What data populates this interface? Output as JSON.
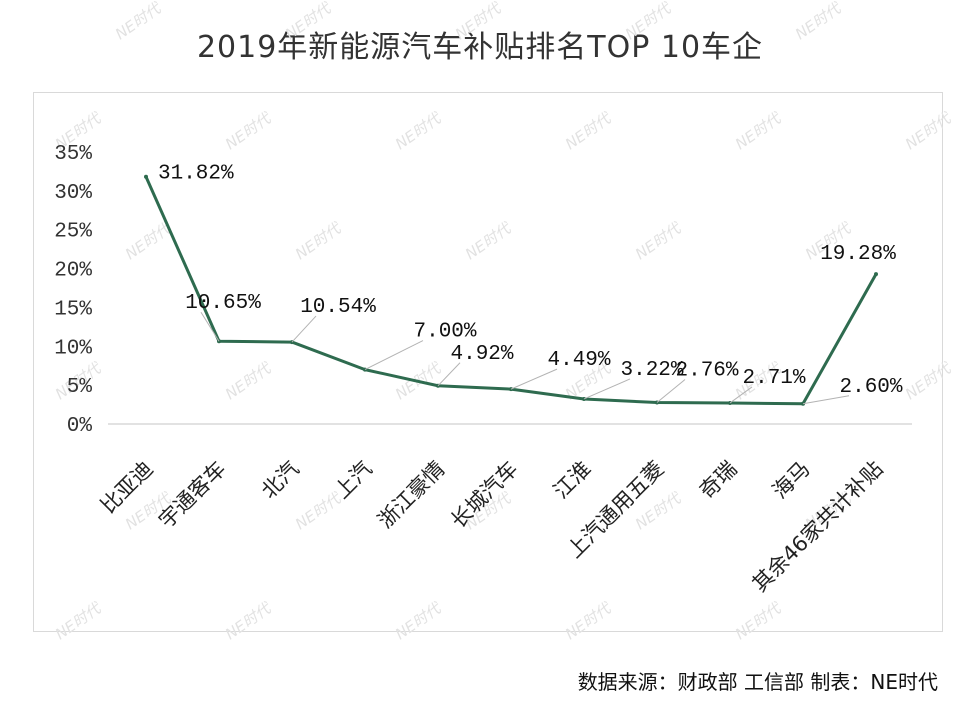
{
  "title": "2019年新能源汽车补贴排名TOP 10车企",
  "source_note": "数据来源：财政部 工信部 制表：NE时代",
  "watermark_text": "NE时代",
  "colors": {
    "line": "#2e6b4f",
    "axis": "#d9d9d9",
    "leader": "#b3b3b3"
  },
  "chart_data": {
    "type": "line",
    "title": "2019年新能源汽车补贴排名TOP 10车企",
    "categories": [
      "比亚迪",
      "宇通客车",
      "北汽",
      "上汽",
      "浙江豪情",
      "长城汽车",
      "江淮",
      "上汽通用五菱",
      "奇瑞",
      "海马",
      "其余46家共计补贴"
    ],
    "values": [
      31.82,
      10.65,
      10.54,
      7.0,
      4.92,
      4.49,
      3.22,
      2.76,
      2.71,
      2.6,
      19.28
    ],
    "value_labels": [
      "31.82%",
      "10.65%",
      "10.54%",
      "7.00%",
      "4.92%",
      "4.49%",
      "3.22%",
      "2.76%",
      "2.71%",
      "2.60%",
      "19.28%"
    ],
    "yticks": [
      "0%",
      "5%",
      "10%",
      "15%",
      "20%",
      "25%",
      "30%",
      "35%"
    ],
    "ylim": [
      0,
      35
    ],
    "xlabel": "",
    "ylabel": "",
    "grid": false,
    "legend": "none"
  }
}
